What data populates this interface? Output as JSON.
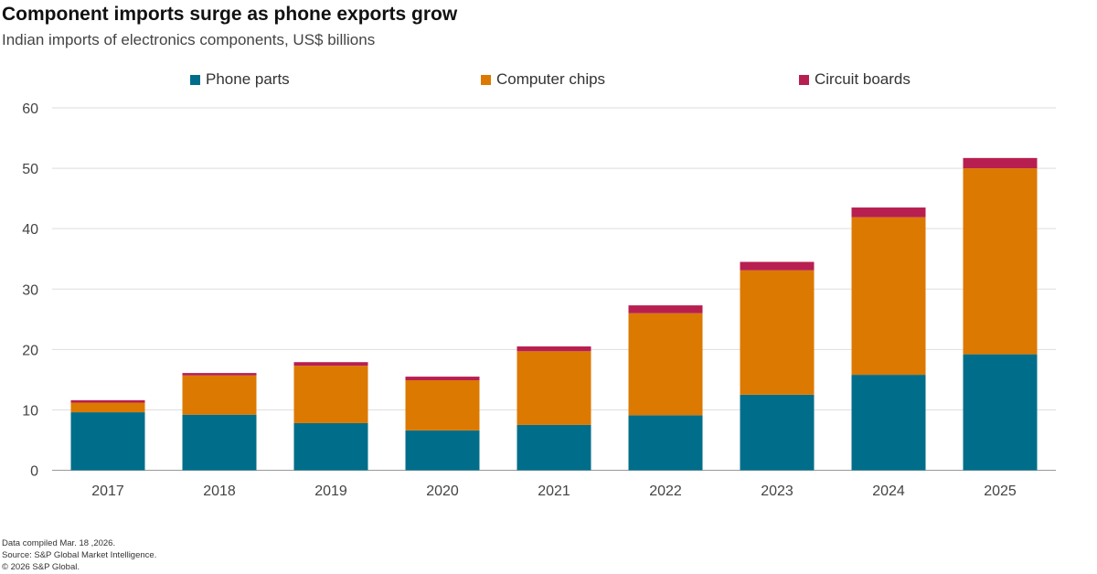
{
  "chart_data": {
    "type": "bar",
    "stacked": true,
    "title": "Component imports surge as phone exports grow",
    "subtitle": "Indian imports of electronics components, US$ billions",
    "categories": [
      "2017",
      "2018",
      "2019",
      "2020",
      "2021",
      "2022",
      "2023",
      "2024",
      "2025"
    ],
    "series": [
      {
        "name": "Phone parts",
        "color": "#006E8A",
        "values": [
          9.6,
          9.2,
          7.8,
          6.6,
          7.5,
          9.1,
          12.5,
          15.8,
          19.2
        ]
      },
      {
        "name": "Computer chips",
        "color": "#DC7900",
        "values": [
          1.6,
          6.5,
          9.5,
          8.3,
          12.2,
          16.9,
          20.6,
          26.1,
          30.8
        ]
      },
      {
        "name": "Circuit boards",
        "color": "#B81F51",
        "values": [
          0.4,
          0.4,
          0.6,
          0.6,
          0.8,
          1.3,
          1.4,
          1.6,
          1.7
        ]
      }
    ],
    "ylim": [
      0,
      60
    ],
    "yticks": [
      "0",
      "10",
      "20",
      "30",
      "40",
      "50",
      "60"
    ],
    "grid": true,
    "legend_position": "top"
  },
  "footer": {
    "compiled": "Data compiled Mar. 18 ,2026.",
    "source": "Source: S&P Global Market Intelligence.",
    "copyright": "© 2026 S&P Global."
  }
}
